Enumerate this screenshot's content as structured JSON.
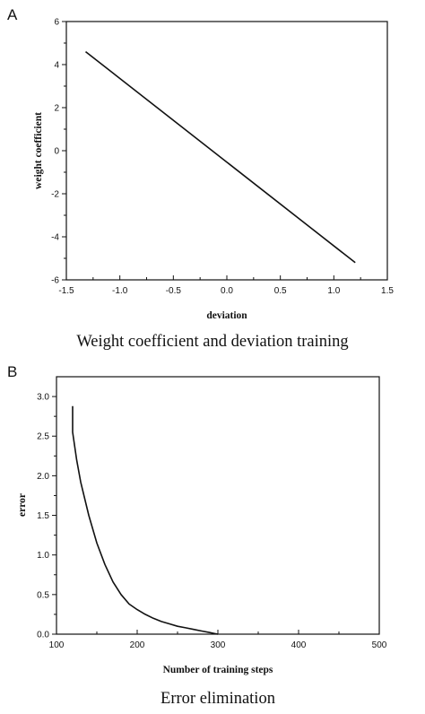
{
  "chart_data": [
    {
      "panel": "A",
      "type": "line",
      "caption": "Weight coefficient and deviation training",
      "xlabel": "deviation",
      "ylabel": "weight coefficient",
      "xlim": [
        -1.5,
        1.5
      ],
      "ylim": [
        -6,
        6
      ],
      "xticks": [
        "-1.5",
        "-1.0",
        "-0.5",
        "0.0",
        "0.5",
        "1.0",
        "1.5"
      ],
      "yticks": [
        "-6",
        "-4",
        "-2",
        "0",
        "2",
        "4",
        "6"
      ],
      "grid": false,
      "series": [
        {
          "x": [
            -1.32,
            1.2
          ],
          "y": [
            4.6,
            -5.2
          ]
        }
      ]
    },
    {
      "panel": "B",
      "type": "line",
      "caption": "Error elimination",
      "xlabel": "Number of training steps",
      "ylabel": "error",
      "xlim": [
        100,
        500
      ],
      "ylim": [
        0,
        3.25
      ],
      "xticks": [
        "100",
        "200",
        "300",
        "400",
        "500"
      ],
      "yticks": [
        "0.0",
        "0.5",
        "1.0",
        "1.5",
        "2.0",
        "2.5",
        "3.0"
      ],
      "grid": false,
      "series": [
        {
          "x": [
            120,
            120,
            125,
            130,
            140,
            150,
            160,
            170,
            180,
            190,
            200,
            210,
            220,
            230,
            240,
            250,
            260,
            270,
            280,
            290,
            295,
            300
          ],
          "y": [
            2.88,
            2.55,
            2.2,
            1.92,
            1.5,
            1.15,
            0.88,
            0.66,
            0.5,
            0.38,
            0.31,
            0.25,
            0.2,
            0.16,
            0.13,
            0.1,
            0.08,
            0.06,
            0.04,
            0.02,
            0.01,
            0.0
          ]
        }
      ]
    }
  ]
}
